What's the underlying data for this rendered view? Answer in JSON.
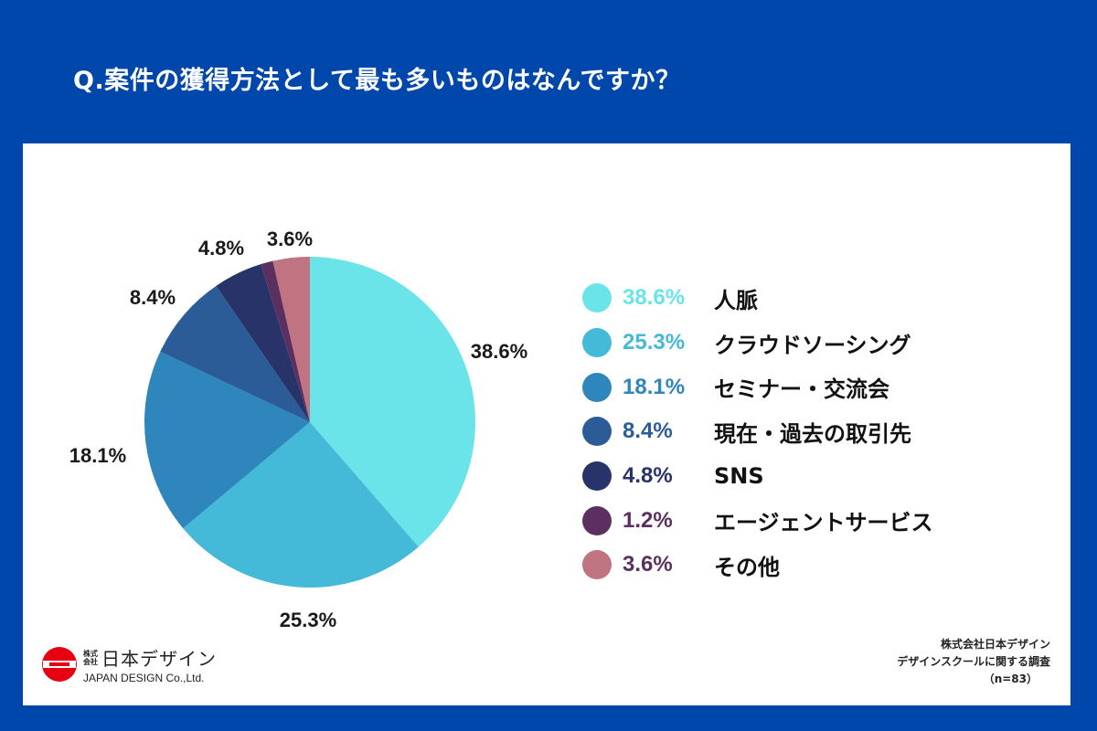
{
  "title": "Q.案件の獲得方法として最も多いものはなんですか？",
  "chart_data": {
    "type": "pie",
    "categories": [
      "人脈",
      "クラウドソーシング",
      "セミナー・交流会",
      "現在・過去の取引先",
      "SNS",
      "エージェントサービス",
      "その他"
    ],
    "values": [
      38.6,
      25.3,
      18.1,
      8.4,
      4.8,
      1.2,
      3.6
    ],
    "labels": [
      "38.6%",
      "25.3%",
      "18.1%",
      "8.4%",
      "4.8%",
      "1.2%",
      "3.6%"
    ],
    "slice_labels": [
      "38.6%",
      "25.3%",
      "18.1%",
      "8.4%",
      "4.8%",
      "",
      "3.6%"
    ],
    "colors": [
      "#6AE3E9",
      "#45B9D8",
      "#2E86BC",
      "#2B5C98",
      "#273369",
      "#5B2F5F",
      "#C07380"
    ],
    "legend_text_colors": [
      "#6AE3E9",
      "#45B9D8",
      "#2E86BC",
      "#2B5C98",
      "#273369",
      "#5B2F5F",
      "#5B2F5F"
    ],
    "legend_placement": "right"
  },
  "legend": [
    {
      "pct": "38.6%",
      "name": "人脈"
    },
    {
      "pct": "25.3%",
      "name": "クラウドソーシング"
    },
    {
      "pct": "18.1%",
      "name": "セミナー・交流会"
    },
    {
      "pct": "8.4%",
      "name": "現在・過去の取引先"
    },
    {
      "pct": "4.8%",
      "name": "SNS"
    },
    {
      "pct": "1.2%",
      "name": "エージェントサービス"
    },
    {
      "pct": "3.6%",
      "name": "その他"
    }
  ],
  "logo": {
    "small_top": "株式",
    "small_bottom": "会社",
    "name_jp": "日本デザイン",
    "name_en": "JAPAN DESIGN Co.,Ltd."
  },
  "source": {
    "line1": "株式会社日本デザイン",
    "line2": "デザインスクールに関する調査",
    "line3": "（n=83）"
  }
}
